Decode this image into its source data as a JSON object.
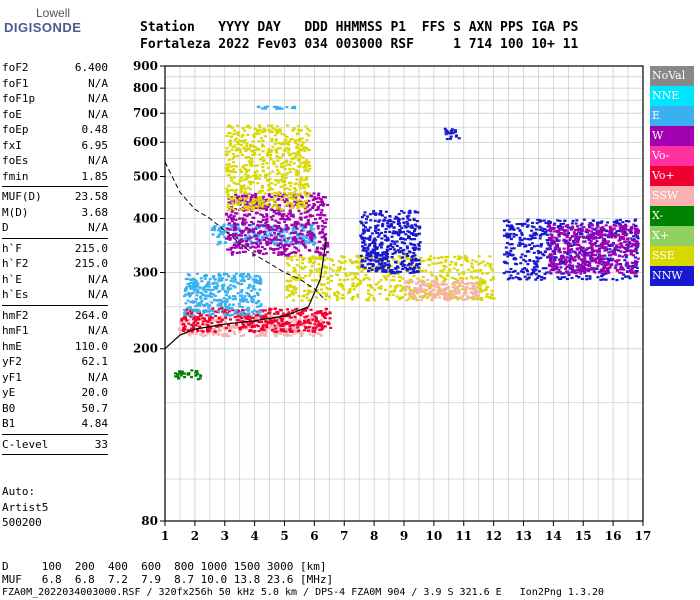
{
  "logo": {
    "line1": "Lowell",
    "line2": "DIGISONDE"
  },
  "header": {
    "line1": "Station   YYYY DAY   DDD HHMMSS P1  FFS S AXN PPS IGA PS",
    "line2": "Fortaleza 2022 Fev03 034 003000 RSF     1 714 100 10+ 11"
  },
  "params": [
    {
      "name": "foF2",
      "value": "6.400"
    },
    {
      "name": "foF1",
      "value": "N/A"
    },
    {
      "name": "foF1p",
      "value": "N/A"
    },
    {
      "name": "foE",
      "value": "N/A"
    },
    {
      "name": "foEp",
      "value": "0.48"
    },
    {
      "name": "fxI",
      "value": "6.95"
    },
    {
      "name": "foEs",
      "value": "N/A"
    },
    {
      "name": "fmin",
      "value": "1.85"
    },
    {
      "name": "MUF(D)",
      "value": "23.58"
    },
    {
      "name": "M(D)",
      "value": "3.68"
    },
    {
      "name": "D",
      "value": "N/A"
    },
    {
      "name": "h`F",
      "value": "215.0"
    },
    {
      "name": "h`F2",
      "value": "215.0"
    },
    {
      "name": "h`E",
      "value": "N/A"
    },
    {
      "name": "h`Es",
      "value": "N/A"
    },
    {
      "name": "hmF2",
      "value": "264.0"
    },
    {
      "name": "hmF1",
      "value": "N/A"
    },
    {
      "name": "hmE",
      "value": "110.0"
    },
    {
      "name": "yF2",
      "value": "62.1"
    },
    {
      "name": "yF1",
      "value": "N/A"
    },
    {
      "name": "yE",
      "value": "20.0"
    },
    {
      "name": "B0",
      "value": "50.7"
    },
    {
      "name": "B1",
      "value": "4.84"
    },
    {
      "name": "C-level",
      "value": "33"
    }
  ],
  "auto": {
    "line1": "Auto:",
    "line2": "Artist5",
    "line3": "500200"
  },
  "footer": {
    "line1": "D     100  200  400  600  800 1000 1500 3000 [km]",
    "line2": "MUF   6.8  6.8  7.2  7.9  8.7 10.0 13.8 23.6 [MHz]",
    "line3": "FZA0M_2022034003000.RSF / 320fx256h 50 kHz 5.0 km / DPS-4 FZA0M 904 / 3.9 S 321.6 E   Ion2Png 1.3.20"
  },
  "legend": [
    {
      "label": "NoVal",
      "color": "#888888",
      "text": "#ffffff"
    },
    {
      "label": "NNE",
      "color": "#00e5ff",
      "text": "#ffffff"
    },
    {
      "label": "E",
      "color": "#3ab0f0",
      "text": "#ffffff"
    },
    {
      "label": "W",
      "color": "#a000b0",
      "text": "#ffffff"
    },
    {
      "label": "Vo-",
      "color": "#ff30a0",
      "text": "#ffffff"
    },
    {
      "label": "Vo+",
      "color": "#f00030",
      "text": "#ffffff"
    },
    {
      "label": "SSW",
      "color": "#f8b0b0",
      "text": "#ffffff"
    },
    {
      "label": "X-",
      "color": "#008000",
      "text": "#ffffff"
    },
    {
      "label": "X+",
      "color": "#90d060",
      "text": "#ffffff"
    },
    {
      "label": "SSE",
      "color": "#d8d800",
      "text": "#ffffff"
    },
    {
      "label": "NNW",
      "color": "#1818d0",
      "text": "#ffffff"
    }
  ],
  "chart_data": {
    "type": "scatter",
    "xlabel": "",
    "ylabel": "",
    "xlim": [
      1,
      17
    ],
    "ylim": [
      80,
      900
    ],
    "yscale": "log",
    "xticks": [
      1,
      2,
      3,
      4,
      5,
      6,
      7,
      8,
      9,
      10,
      11,
      12,
      13,
      14,
      15,
      16,
      17
    ],
    "yticks": [
      80,
      200,
      300,
      400,
      500,
      600,
      700,
      800,
      900
    ],
    "grid": true,
    "clusters": [
      {
        "series": "SSW",
        "fx": [
          1.4,
          6.3
        ],
        "h": [
          215,
          240
        ]
      },
      {
        "series": "Vo+",
        "fx": [
          1.5,
          6.5
        ],
        "h": [
          220,
          250
        ]
      },
      {
        "series": "E",
        "fx": [
          1.6,
          4.2
        ],
        "h": [
          240,
          300
        ]
      },
      {
        "series": "E",
        "fx": [
          2.5,
          6.0
        ],
        "h": [
          350,
          390
        ]
      },
      {
        "series": "W",
        "fx": [
          3.0,
          6.4
        ],
        "h": [
          330,
          460
        ]
      },
      {
        "series": "SSE",
        "fx": [
          3.0,
          5.8
        ],
        "h": [
          420,
          660
        ]
      },
      {
        "series": "SSE",
        "fx": [
          5.0,
          12.0
        ],
        "h": [
          260,
          330
        ]
      },
      {
        "series": "NNW",
        "fx": [
          7.5,
          9.5
        ],
        "h": [
          300,
          420
        ]
      },
      {
        "series": "SSW",
        "fx": [
          9.0,
          11.5
        ],
        "h": [
          260,
          290
        ]
      },
      {
        "series": "NNW",
        "fx": [
          12.3,
          16.8
        ],
        "h": [
          290,
          400
        ]
      },
      {
        "series": "W",
        "fx": [
          13.8,
          16.8
        ],
        "h": [
          300,
          390
        ]
      },
      {
        "series": "X-",
        "fx": [
          1.3,
          2.2
        ],
        "h": [
          170,
          180
        ]
      },
      {
        "series": "NNW",
        "fx": [
          10.3,
          10.8
        ],
        "h": [
          610,
          650
        ]
      },
      {
        "series": "E",
        "fx": [
          4.0,
          5.3
        ],
        "h": [
          720,
          730
        ]
      }
    ],
    "profile_curve": {
      "fx": [
        1.0,
        1.5,
        2.0,
        3.0,
        4.0,
        5.0,
        5.8,
        6.2,
        6.4
      ],
      "h": [
        200,
        215,
        222,
        228,
        232,
        238,
        250,
        290,
        360
      ]
    },
    "dashed_curve": {
      "fx": [
        1.0,
        1.5,
        2.0,
        2.5,
        3.0,
        3.5,
        4.0,
        4.5,
        5.0,
        5.5,
        6.0,
        6.3
      ],
      "h": [
        540,
        460,
        420,
        400,
        375,
        350,
        330,
        315,
        300,
        290,
        275,
        262
      ]
    }
  }
}
